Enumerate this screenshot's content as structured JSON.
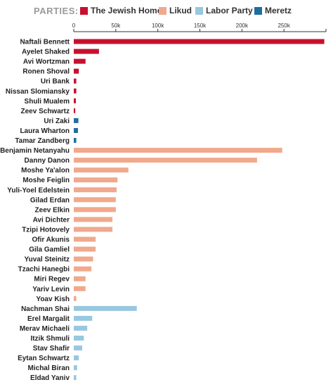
{
  "legend": {
    "title": "PARTIES:",
    "items": [
      {
        "label": "The Jewish Home",
        "color": "#c8102e"
      },
      {
        "label": "Likud",
        "color": "#f0a98c"
      },
      {
        "label": "Labor Party",
        "color": "#98c8e0"
      },
      {
        "label": "Meretz",
        "color": "#1f6ea0"
      }
    ]
  },
  "chart_data": {
    "type": "bar",
    "orientation": "horizontal",
    "xlim": [
      0,
      300000
    ],
    "tick_labels": [
      "0",
      "50k",
      "100k",
      "150k",
      "200k",
      "250k"
    ],
    "tick_values": [
      0,
      50000,
      100000,
      150000,
      200000,
      250000
    ],
    "categories": [
      "Naftali Bennett",
      "Ayelet Shaked",
      "Avi Wortzman",
      "Ronen Shoval",
      "Uri Bank",
      "Nissan Slomiansky",
      "Shuli Mualem",
      "Zeev Schwartz",
      "Uri Zaki",
      "Laura Wharton",
      "Tamar Zandberg",
      "Benjamin Netanyahu",
      "Danny Danon",
      "Moshe Ya'alon",
      "Moshe Feiglin",
      "Yuli-Yoel Edelstein",
      "Gilad Erdan",
      "Zeev Elkin",
      "Avi Dichter",
      "Tzipi Hotovely",
      "Ofir Akunis",
      "Gila Gamliel",
      "Yuval Steinitz",
      "Tzachi Hanegbi",
      "Miri Regev",
      "Yariv Levin",
      "Yoav Kish",
      "Nachman Shai",
      "Erel Margalit",
      "Merav Michaeli",
      "Itzik Shmuli",
      "Stav Shafir",
      "Eytan Schwartz",
      "Michal Biran",
      "Eldad Yaniv"
    ],
    "values": [
      298000,
      30000,
      14000,
      6000,
      3000,
      3000,
      2500,
      1800,
      5500,
      5000,
      3000,
      248000,
      218000,
      65000,
      52000,
      51000,
      50000,
      50000,
      46000,
      46000,
      26000,
      26000,
      23000,
      21000,
      14000,
      14000,
      3000,
      75000,
      22000,
      16000,
      12000,
      10000,
      6000,
      4000,
      3000
    ],
    "parties": [
      "The Jewish Home",
      "The Jewish Home",
      "The Jewish Home",
      "The Jewish Home",
      "The Jewish Home",
      "The Jewish Home",
      "The Jewish Home",
      "The Jewish Home",
      "Meretz",
      "Meretz",
      "Meretz",
      "Likud",
      "Likud",
      "Likud",
      "Likud",
      "Likud",
      "Likud",
      "Likud",
      "Likud",
      "Likud",
      "Likud",
      "Likud",
      "Likud",
      "Likud",
      "Likud",
      "Likud",
      "Likud",
      "Labor Party",
      "Labor Party",
      "Labor Party",
      "Labor Party",
      "Labor Party",
      "Labor Party",
      "Labor Party",
      "Labor Party"
    ],
    "grid": false
  }
}
